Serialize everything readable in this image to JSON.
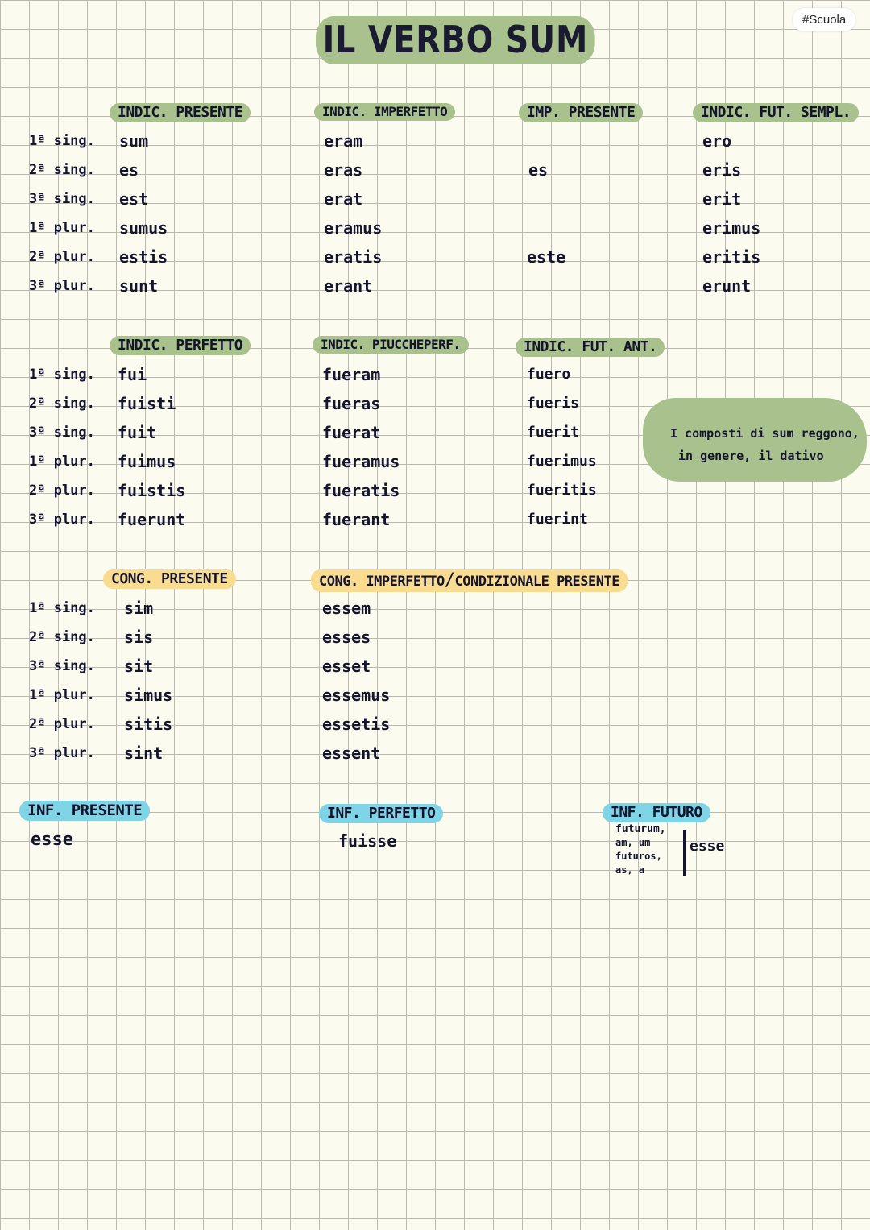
{
  "tag": "#Scuola",
  "title": "IL VERBO SUM",
  "persons": [
    "1ª sing.",
    "2ª sing.",
    "3ª sing.",
    "1ª plur.",
    "2ª plur.",
    "3ª plur."
  ],
  "indic_presente": {
    "header": "INDIC. PRESENTE",
    "forms": [
      "sum",
      "es",
      "est",
      "sumus",
      "estis",
      "sunt"
    ]
  },
  "indic_imperfetto": {
    "header": "INDIC. IMPERFETTO",
    "forms": [
      "eram",
      "eras",
      "erat",
      "eramus",
      "eratis",
      "erant"
    ]
  },
  "imp_presente": {
    "header": "IMP. PRESENTE",
    "forms": [
      "es",
      "este"
    ]
  },
  "indic_fut_sempl": {
    "header": "INDIC. FUT. SEMPL.",
    "forms": [
      "ero",
      "eris",
      "erit",
      "erimus",
      "eritis",
      "erunt"
    ]
  },
  "indic_perfetto": {
    "header": "INDIC. PERFETTO",
    "forms": [
      "fui",
      "fuisti",
      "fuit",
      "fuimus",
      "fuistis",
      "fuerunt"
    ]
  },
  "indic_piuccheperf": {
    "header": "INDIC. PIUCCHEPERF.",
    "forms": [
      "fueram",
      "fueras",
      "fuerat",
      "fueramus",
      "fueratis",
      "fuerant"
    ]
  },
  "indic_fut_ant": {
    "header": "INDIC. FUT. ANT.",
    "forms": [
      "fuero",
      "fueris",
      "fuerit",
      "fuerimus",
      "fueritis",
      "fuerint"
    ]
  },
  "note": {
    "line1": "I composti di sum reggono,",
    "line2": "in genere, il dativo"
  },
  "cong_presente": {
    "header": "CONG. PRESENTE",
    "forms": [
      "sim",
      "sis",
      "sit",
      "simus",
      "sitis",
      "sint"
    ]
  },
  "cong_imperfetto": {
    "header_a": "CONG. IMPERFETTO",
    "separator": "/",
    "header_b": "CONDIZIONALE PRESENTE",
    "forms": [
      "essem",
      "esses",
      "esset",
      "essemus",
      "essetis",
      "essent"
    ]
  },
  "inf_presente": {
    "header": "INF. PRESENTE",
    "form": "esse"
  },
  "inf_perfetto": {
    "header": "INF. PERFETTO",
    "form": "fuisse"
  },
  "inf_futuro": {
    "header": "INF. FUTURO",
    "lines": [
      "futurum,",
      "am, um",
      "futuros,",
      "as, a"
    ],
    "alt": "esse"
  }
}
